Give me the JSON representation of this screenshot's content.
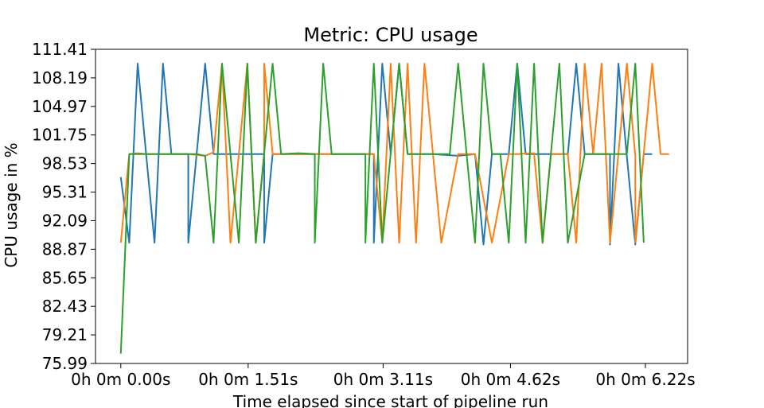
{
  "chart_data": {
    "type": "line",
    "title": "Metric: CPU usage",
    "xlabel": "Time elapsed since start of pipeline run",
    "ylabel": "CPU usage in %",
    "xlim": [
      -0.3,
      6.72
    ],
    "ylim": [
      75.99,
      111.41
    ],
    "x_ticks": [
      {
        "value": 0.0,
        "label": "0h 0m 0.00s"
      },
      {
        "value": 1.51,
        "label": "0h 0m 1.51s"
      },
      {
        "value": 3.11,
        "label": "0h 0m 3.11s"
      },
      {
        "value": 4.62,
        "label": "0h 0m 4.62s"
      },
      {
        "value": 6.22,
        "label": "0h 0m 6.22s"
      }
    ],
    "y_ticks": [
      {
        "value": 75.99,
        "label": "75.99"
      },
      {
        "value": 79.21,
        "label": "79.21"
      },
      {
        "value": 82.43,
        "label": "82.43"
      },
      {
        "value": 85.65,
        "label": "85.65"
      },
      {
        "value": 88.87,
        "label": "88.87"
      },
      {
        "value": 92.09,
        "label": "92.09"
      },
      {
        "value": 95.31,
        "label": "95.31"
      },
      {
        "value": 98.53,
        "label": "98.53"
      },
      {
        "value": 101.75,
        "label": "101.75"
      },
      {
        "value": 104.97,
        "label": "104.97"
      },
      {
        "value": 108.19,
        "label": "108.19"
      },
      {
        "value": 111.41,
        "label": "111.41"
      }
    ],
    "grid": false,
    "legend": "none",
    "series": [
      {
        "color": "#1f77b4",
        "points": [
          [
            0.0,
            97.0
          ],
          [
            0.1,
            89.6
          ],
          [
            0.2,
            109.8
          ],
          [
            0.3,
            99.6
          ],
          [
            0.4,
            89.6
          ],
          [
            0.5,
            109.8
          ],
          [
            0.6,
            99.6
          ],
          [
            0.8,
            99.6
          ],
          [
            0.8,
            89.6
          ],
          [
            1.0,
            109.8
          ],
          [
            1.1,
            99.6
          ],
          [
            1.5,
            99.6
          ],
          [
            1.6,
            99.6
          ],
          [
            1.7,
            99.6
          ],
          [
            1.7,
            89.6
          ],
          [
            1.8,
            99.6
          ],
          [
            2.2,
            99.6
          ],
          [
            2.4,
            99.6
          ],
          [
            3.0,
            99.6
          ],
          [
            3.0,
            89.6
          ],
          [
            3.1,
            109.8
          ],
          [
            3.2,
            99.6
          ],
          [
            3.3,
            109.8
          ],
          [
            3.4,
            99.6
          ],
          [
            3.7,
            99.6
          ],
          [
            4.0,
            99.4
          ],
          [
            4.2,
            99.6
          ],
          [
            4.3,
            89.4
          ],
          [
            4.4,
            99.6
          ],
          [
            4.6,
            99.6
          ],
          [
            4.7,
            109.8
          ],
          [
            4.8,
            99.6
          ],
          [
            5.1,
            99.6
          ],
          [
            5.3,
            99.6
          ],
          [
            5.4,
            109.8
          ],
          [
            5.5,
            99.6
          ],
          [
            5.8,
            99.6
          ],
          [
            5.8,
            89.4
          ],
          [
            5.9,
            109.8
          ],
          [
            6.0,
            99.3
          ],
          [
            6.1,
            89.4
          ],
          [
            6.2,
            99.6
          ],
          [
            6.3,
            99.6
          ]
        ]
      },
      {
        "color": "#ff7f0e",
        "points": [
          [
            0.0,
            89.6
          ],
          [
            0.1,
            99.6
          ],
          [
            0.2,
            99.7
          ],
          [
            0.3,
            99.6
          ],
          [
            0.8,
            99.6
          ],
          [
            1.0,
            99.4
          ],
          [
            1.1,
            99.8
          ],
          [
            1.2,
            109.8
          ],
          [
            1.3,
            89.6
          ],
          [
            1.4,
            99.6
          ],
          [
            1.5,
            109.8
          ],
          [
            1.6,
            89.6
          ],
          [
            1.7,
            99.6
          ],
          [
            1.7,
            109.8
          ],
          [
            1.8,
            99.6
          ],
          [
            2.1,
            99.6
          ],
          [
            2.4,
            99.6
          ],
          [
            3.0,
            99.6
          ],
          [
            3.1,
            89.6
          ],
          [
            3.2,
            109.8
          ],
          [
            3.3,
            89.6
          ],
          [
            3.4,
            109.8
          ],
          [
            3.5,
            89.6
          ],
          [
            3.6,
            109.8
          ],
          [
            3.8,
            89.6
          ],
          [
            4.0,
            99.6
          ],
          [
            4.2,
            99.6
          ],
          [
            4.4,
            89.6
          ],
          [
            4.6,
            99.6
          ],
          [
            4.7,
            99.6
          ],
          [
            4.9,
            99.7
          ],
          [
            4.9,
            99.6
          ],
          [
            5.0,
            89.6
          ],
          [
            5.1,
            99.6
          ],
          [
            5.3,
            99.6
          ],
          [
            5.4,
            89.6
          ],
          [
            5.5,
            109.8
          ],
          [
            5.6,
            99.6
          ],
          [
            5.7,
            109.8
          ],
          [
            5.8,
            89.6
          ],
          [
            6.0,
            109.8
          ],
          [
            6.1,
            99.4
          ],
          [
            6.1,
            89.6
          ],
          [
            6.3,
            109.8
          ],
          [
            6.4,
            99.6
          ],
          [
            6.5,
            99.6
          ]
        ]
      },
      {
        "color": "#2ca02c",
        "points": [
          [
            0.0,
            77.1
          ],
          [
            0.1,
            99.6
          ],
          [
            0.2,
            99.6
          ],
          [
            0.9,
            99.6
          ],
          [
            1.0,
            99.4
          ],
          [
            1.1,
            89.6
          ],
          [
            1.2,
            109.8
          ],
          [
            1.3,
            99.6
          ],
          [
            1.4,
            89.6
          ],
          [
            1.5,
            109.8
          ],
          [
            1.6,
            89.6
          ],
          [
            1.8,
            109.8
          ],
          [
            1.9,
            99.6
          ],
          [
            2.1,
            99.7
          ],
          [
            2.3,
            99.6
          ],
          [
            2.3,
            89.6
          ],
          [
            2.4,
            109.8
          ],
          [
            2.5,
            99.6
          ],
          [
            2.9,
            99.6
          ],
          [
            2.9,
            89.6
          ],
          [
            3.0,
            109.8
          ],
          [
            3.1,
            89.6
          ],
          [
            3.3,
            109.8
          ],
          [
            3.4,
            99.6
          ],
          [
            3.7,
            99.6
          ],
          [
            3.9,
            99.6
          ],
          [
            4.0,
            109.8
          ],
          [
            4.1,
            99.6
          ],
          [
            4.2,
            89.6
          ],
          [
            4.3,
            109.8
          ],
          [
            4.4,
            99.6
          ],
          [
            4.5,
            99.6
          ],
          [
            4.6,
            89.6
          ],
          [
            4.7,
            109.8
          ],
          [
            4.8,
            89.6
          ],
          [
            4.9,
            109.8
          ],
          [
            5.0,
            89.6
          ],
          [
            5.2,
            109.8
          ],
          [
            5.3,
            89.6
          ],
          [
            5.5,
            99.6
          ],
          [
            5.9,
            99.6
          ],
          [
            6.0,
            99.6
          ],
          [
            6.1,
            109.8
          ],
          [
            6.2,
            89.6
          ]
        ]
      }
    ]
  }
}
